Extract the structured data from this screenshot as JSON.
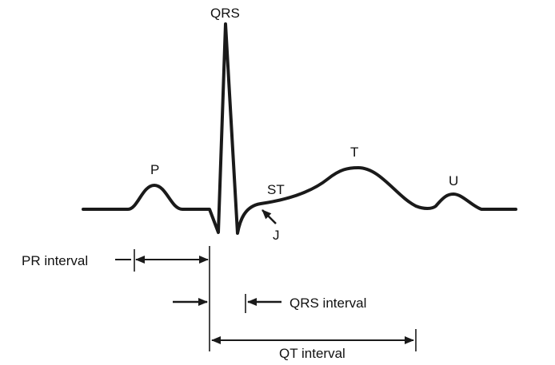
{
  "colors": {
    "ink": "#1a1a1a",
    "background": "#ffffff"
  },
  "waveform": {
    "labels": {
      "qrs": "QRS",
      "p": "P",
      "t": "T",
      "u": "U",
      "st": "ST",
      "j": "J"
    }
  },
  "intervals": {
    "pr": "PR interval",
    "qrs": "QRS interval",
    "qt": "QT interval"
  }
}
